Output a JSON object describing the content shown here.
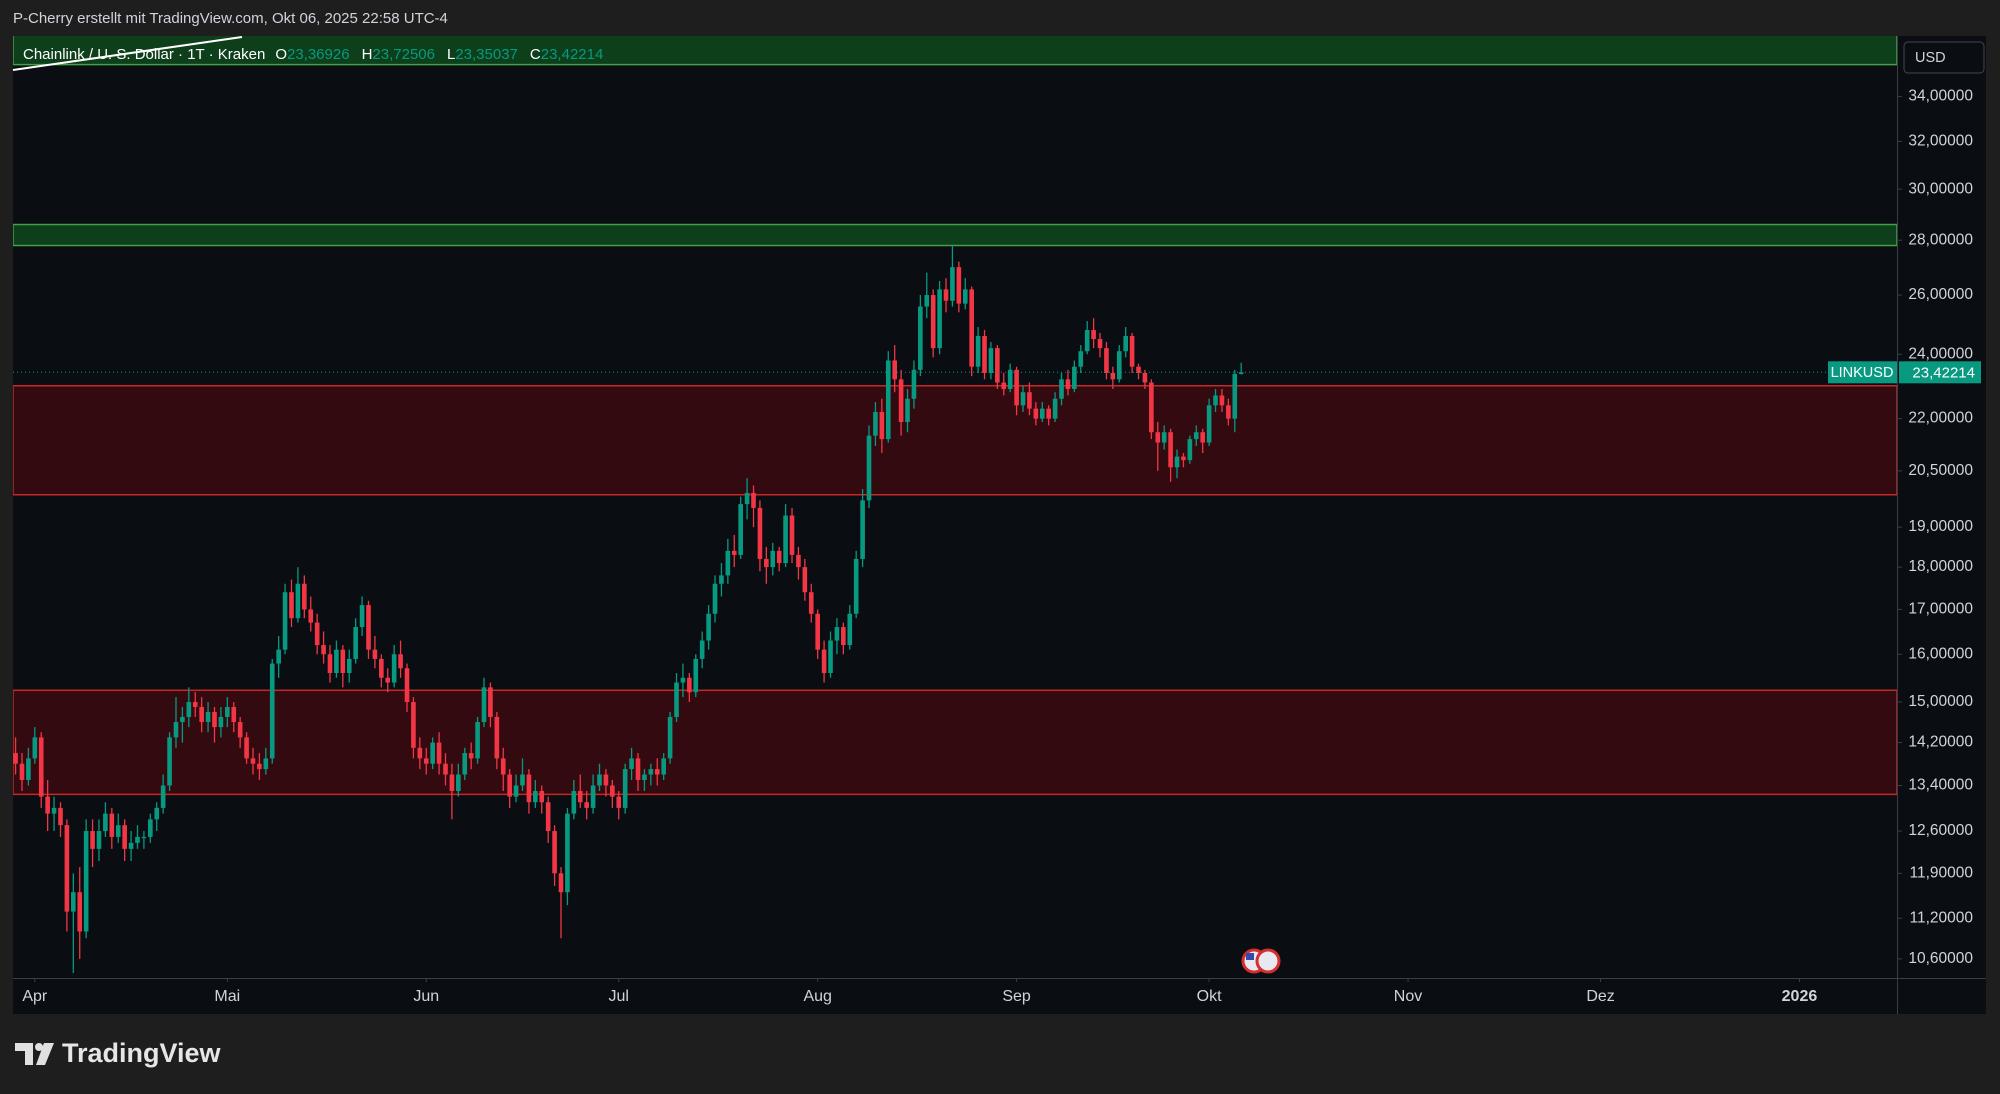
{
  "chart_data": {
    "type": "candlestick",
    "caption": "P-Cherry erstellt mit TradingView.com, Okt 06, 2025 22:58 UTC-4",
    "symbol": "Chainlink / U. S. Dollar · 1T · Kraken",
    "ohlc_legend": [
      {
        "key": "O",
        "value": "23,36926"
      },
      {
        "key": "H",
        "value": "23,72506"
      },
      {
        "key": "L",
        "value": "23,35037"
      },
      {
        "key": "C",
        "value": "23,42214"
      }
    ],
    "currency": "USD",
    "ticker": "LINKUSD",
    "last_price": {
      "value": 23.42214,
      "label": "23,42214"
    },
    "brand": "TradingView",
    "log_scale": true,
    "grid": false,
    "up_color": "#089981",
    "down_color": "#f23645",
    "ylim": [
      10.33,
      36.9
    ],
    "yticks": [
      {
        "value": 10.6,
        "label": "10,60000"
      },
      {
        "value": 11.2,
        "label": "11,20000"
      },
      {
        "value": 11.9,
        "label": "11,90000"
      },
      {
        "value": 12.6,
        "label": "12,60000"
      },
      {
        "value": 13.4,
        "label": "13,40000"
      },
      {
        "value": 14.2,
        "label": "14,20000"
      },
      {
        "value": 15,
        "label": "15,00000"
      },
      {
        "value": 16,
        "label": "16,00000"
      },
      {
        "value": 17,
        "label": "17,00000"
      },
      {
        "value": 18,
        "label": "18,00000"
      },
      {
        "value": 19,
        "label": "19,00000"
      },
      {
        "value": 20.5,
        "label": "20,50000"
      },
      {
        "value": 22,
        "label": "22,00000"
      },
      {
        "value": 24,
        "label": "24,00000"
      },
      {
        "value": 26,
        "label": "26,00000"
      },
      {
        "value": 28,
        "label": "28,00000"
      },
      {
        "value": 30,
        "label": "30,00000"
      },
      {
        "value": 32,
        "label": "32,00000"
      },
      {
        "value": 34,
        "label": "34,00000"
      }
    ],
    "xlim": [
      -0.4,
      293.2
    ],
    "xticks": [
      {
        "value": 3,
        "label": "Apr"
      },
      {
        "value": 33,
        "label": "Mai"
      },
      {
        "value": 64,
        "label": "Jun"
      },
      {
        "value": 94,
        "label": "Jul"
      },
      {
        "value": 125,
        "label": "Aug"
      },
      {
        "value": 156,
        "label": "Sep"
      },
      {
        "value": 186,
        "label": "Okt"
      },
      {
        "value": 217,
        "label": "Nov"
      },
      {
        "value": 247,
        "label": "Dez"
      },
      {
        "value": 278,
        "label": "2026"
      }
    ],
    "zones": [
      {
        "range": [
          35.5,
          37.5
        ],
        "fill": "#0d3f1b",
        "stroke": "#43a047"
      },
      {
        "range": [
          27.8,
          28.6
        ],
        "fill": "#0d3f1b",
        "stroke": "#43a047"
      },
      {
        "range": [
          19.85,
          23.0
        ],
        "fill": "#330a10",
        "stroke": "#c62828"
      },
      {
        "range": [
          13.24,
          15.24
        ],
        "fill": "#330a10",
        "stroke": "#c62828"
      }
    ],
    "open": [
      14.0,
      13.8,
      13.5,
      13.9,
      14.3,
      13.2,
      12.9,
      13.0,
      12.7,
      11.3,
      11.6,
      11.0,
      12.6,
      12.3,
      12.6,
      12.9,
      12.5,
      12.7,
      12.3,
      12.4,
      12.5,
      12.5,
      12.8,
      13.0,
      13.4,
      14.3,
      14.6,
      14.7,
      15.0,
      14.9,
      14.6,
      14.8,
      14.5,
      14.7,
      14.9,
      14.6,
      14.3,
      13.9,
      13.8,
      13.7,
      13.9,
      15.8,
      16.1,
      17.4,
      16.8,
      17.6,
      17.0,
      16.7,
      16.2,
      16.0,
      15.6,
      16.1,
      15.6,
      15.9,
      16.6,
      17.1,
      16.1,
      15.9,
      15.5,
      15.4,
      16.0,
      15.7,
      15.0,
      14.1,
      13.9,
      13.8,
      14.2,
      13.8,
      13.6,
      13.3,
      13.6,
      14.0,
      13.9,
      14.6,
      15.3,
      14.7,
      13.9,
      13.6,
      13.2,
      13.4,
      13.6,
      13.1,
      13.3,
      13.1,
      12.6,
      11.9,
      11.6,
      12.9,
      13.3,
      13.1,
      13.0,
      13.4,
      13.6,
      13.4,
      13.2,
      13.0,
      13.7,
      13.9,
      13.5,
      13.6,
      13.7,
      13.6,
      13.9,
      14.7,
      15.4,
      15.5,
      15.2,
      15.9,
      16.3,
      16.9,
      17.6,
      17.8,
      18.4,
      18.3,
      19.6,
      19.9,
      19.5,
      18.2,
      18.0,
      18.4,
      18.1,
      19.3,
      18.3,
      18.0,
      17.4,
      16.9,
      16.1,
      15.6,
      16.3,
      16.6,
      16.2,
      16.9,
      18.2,
      19.7,
      21.5,
      22.2,
      21.4,
      23.8,
      23.2,
      21.9,
      22.6,
      23.5,
      25.6,
      26.0,
      24.2,
      26.2,
      25.8,
      27.0,
      25.7,
      26.2,
      23.6,
      24.6,
      23.4,
      24.2,
      23.1,
      22.9,
      23.5,
      22.4,
      22.8,
      22.3,
      22.0,
      22.3,
      22.0,
      22.6,
      23.2,
      22.9,
      23.6,
      24.1,
      24.8,
      24.5,
      24.2,
      23.4,
      23.2,
      24.1,
      24.6,
      23.6,
      23.4,
      23.1,
      21.6,
      21.3,
      21.6,
      20.6,
      20.9,
      20.8,
      21.4,
      21.6,
      21.3,
      22.4,
      22.7,
      22.4,
      22.0,
      23.36926
    ],
    "high": [
      14.3,
      14.0,
      14.1,
      14.5,
      14.4,
      13.5,
      13.2,
      13.1,
      12.8,
      11.9,
      12.0,
      12.8,
      12.8,
      12.8,
      13.1,
      13.0,
      12.9,
      12.8,
      12.6,
      12.7,
      12.6,
      12.9,
      13.1,
      13.6,
      14.4,
      15.1,
      14.9,
      15.3,
      15.2,
      15.1,
      15.0,
      14.9,
      14.9,
      15.1,
      15.0,
      14.7,
      14.4,
      14.1,
      14.0,
      14.1,
      15.9,
      16.4,
      17.6,
      17.7,
      18.0,
      17.8,
      17.3,
      16.9,
      16.5,
      16.2,
      16.3,
      16.2,
      16.1,
      16.8,
      17.3,
      17.2,
      16.4,
      16.0,
      15.7,
      16.2,
      16.3,
      15.8,
      15.1,
      14.3,
      14.1,
      14.3,
      14.4,
      14.0,
      13.8,
      13.8,
      14.1,
      14.2,
      14.7,
      15.5,
      15.4,
      14.8,
      14.1,
      13.7,
      13.6,
      13.9,
      13.7,
      13.5,
      13.4,
      13.2,
      12.7,
      12.0,
      13.0,
      13.5,
      13.6,
      13.3,
      13.6,
      13.8,
      13.7,
      13.5,
      13.3,
      13.8,
      14.1,
      14.0,
      13.7,
      13.8,
      13.9,
      14.0,
      14.8,
      15.6,
      15.8,
      15.6,
      16.0,
      16.5,
      17.1,
      17.8,
      18.1,
      18.7,
      18.8,
      19.8,
      20.3,
      20.1,
      19.7,
      18.5,
      18.6,
      18.5,
      19.6,
      19.5,
      18.5,
      18.2,
      17.6,
      17.0,
      16.3,
      16.5,
      16.8,
      16.7,
      17.1,
      18.4,
      20.0,
      21.8,
      22.5,
      22.6,
      24.1,
      24.3,
      23.5,
      22.9,
      23.8,
      26.0,
      26.8,
      26.2,
      26.5,
      26.6,
      27.8,
      27.2,
      26.6,
      26.3,
      24.9,
      24.8,
      24.4,
      24.3,
      23.4,
      23.7,
      23.6,
      23.0,
      23.1,
      22.5,
      22.5,
      22.4,
      22.8,
      23.4,
      23.5,
      23.8,
      24.3,
      25.1,
      25.2,
      24.7,
      24.4,
      23.6,
      24.3,
      24.9,
      24.7,
      23.7,
      23.5,
      23.2,
      21.9,
      21.8,
      21.7,
      21.1,
      21.0,
      21.5,
      21.8,
      21.7,
      22.6,
      22.9,
      22.9,
      22.6,
      23.5,
      23.72506
    ],
    "low": [
      13.6,
      13.3,
      13.4,
      13.8,
      13.0,
      12.6,
      12.6,
      12.5,
      11.0,
      10.4,
      10.6,
      10.9,
      12.0,
      12.1,
      12.5,
      12.3,
      12.4,
      12.1,
      12.1,
      12.3,
      12.3,
      12.4,
      12.6,
      12.9,
      13.3,
      14.1,
      14.2,
      14.5,
      14.7,
      14.4,
      14.4,
      14.2,
      14.3,
      14.5,
      14.4,
      14.1,
      13.8,
      13.6,
      13.5,
      13.6,
      13.8,
      15.5,
      16.0,
      16.6,
      16.7,
      16.8,
      16.5,
      16.0,
      15.8,
      15.4,
      15.5,
      15.3,
      15.4,
      15.8,
      16.4,
      15.9,
      15.7,
      15.3,
      15.2,
      15.3,
      15.5,
      14.8,
      13.9,
      13.7,
      13.6,
      13.7,
      13.6,
      13.4,
      12.8,
      13.2,
      13.5,
      13.7,
      13.8,
      14.5,
      14.5,
      13.7,
      13.3,
      13.0,
      13.1,
      13.3,
      12.9,
      13.0,
      12.9,
      12.4,
      11.7,
      10.9,
      11.4,
      12.8,
      13.0,
      12.8,
      12.9,
      13.3,
      13.2,
      13.0,
      12.8,
      12.9,
      13.5,
      13.3,
      13.3,
      13.4,
      13.4,
      13.5,
      13.8,
      14.6,
      15.1,
      15.0,
      15.1,
      15.7,
      16.1,
      16.7,
      17.3,
      17.6,
      18.0,
      18.2,
      19.2,
      19.0,
      17.9,
      17.6,
      17.8,
      17.9,
      18.0,
      18.1,
      17.7,
      17.2,
      16.7,
      15.9,
      15.4,
      15.5,
      16.0,
      16.0,
      16.1,
      16.8,
      18.0,
      19.5,
      21.2,
      21.0,
      21.3,
      22.8,
      21.5,
      21.6,
      22.3,
      23.3,
      25.2,
      23.9,
      24.0,
      25.4,
      25.6,
      25.4,
      25.5,
      23.3,
      23.4,
      23.2,
      23.2,
      22.9,
      22.7,
      22.8,
      22.1,
      22.2,
      22.1,
      21.8,
      21.9,
      21.8,
      21.9,
      22.4,
      22.7,
      22.8,
      23.4,
      24.0,
      24.2,
      23.9,
      23.2,
      22.9,
      23.1,
      23.9,
      23.4,
      23.2,
      22.9,
      21.4,
      20.5,
      21.1,
      20.2,
      20.3,
      20.6,
      20.7,
      21.2,
      21.0,
      21.2,
      22.2,
      22.2,
      21.8,
      21.6,
      23.35037
    ],
    "close": [
      13.8,
      13.5,
      13.9,
      14.3,
      13.2,
      12.9,
      13.0,
      12.7,
      11.3,
      11.6,
      11.0,
      12.6,
      12.3,
      12.6,
      12.9,
      12.5,
      12.7,
      12.3,
      12.4,
      12.5,
      12.5,
      12.8,
      13.0,
      13.4,
      14.3,
      14.6,
      14.7,
      15.0,
      14.9,
      14.6,
      14.8,
      14.5,
      14.7,
      14.9,
      14.6,
      14.3,
      13.9,
      13.8,
      13.7,
      13.9,
      15.8,
      16.1,
      17.4,
      16.8,
      17.6,
      17.0,
      16.7,
      16.2,
      16.0,
      15.6,
      16.1,
      15.6,
      15.9,
      16.6,
      17.1,
      16.1,
      15.9,
      15.5,
      15.4,
      16.0,
      15.7,
      15.0,
      14.1,
      13.9,
      13.8,
      14.2,
      13.8,
      13.6,
      13.3,
      13.6,
      14.0,
      13.9,
      14.6,
      15.3,
      14.7,
      13.9,
      13.6,
      13.2,
      13.4,
      13.6,
      13.1,
      13.3,
      13.1,
      12.6,
      11.9,
      11.6,
      12.9,
      13.3,
      13.1,
      13.0,
      13.4,
      13.6,
      13.4,
      13.2,
      13.0,
      13.7,
      13.9,
      13.5,
      13.6,
      13.7,
      13.6,
      13.9,
      14.7,
      15.4,
      15.5,
      15.2,
      15.9,
      16.3,
      16.9,
      17.6,
      17.8,
      18.4,
      18.3,
      19.6,
      19.9,
      19.5,
      18.2,
      18.0,
      18.4,
      18.1,
      19.3,
      18.3,
      18.0,
      17.4,
      16.9,
      16.1,
      15.6,
      16.3,
      16.6,
      16.2,
      16.9,
      18.2,
      19.7,
      21.5,
      22.2,
      21.4,
      23.8,
      23.2,
      21.9,
      22.6,
      23.5,
      25.6,
      26.0,
      24.2,
      26.2,
      25.8,
      27.0,
      25.7,
      26.2,
      23.6,
      24.6,
      23.4,
      24.2,
      23.1,
      22.9,
      23.5,
      22.4,
      22.8,
      22.3,
      22.0,
      22.3,
      22.0,
      22.6,
      23.2,
      22.9,
      23.6,
      24.1,
      24.8,
      24.5,
      24.2,
      23.4,
      23.2,
      24.1,
      24.6,
      23.6,
      23.4,
      23.1,
      21.6,
      21.3,
      21.6,
      20.6,
      20.9,
      20.8,
      21.4,
      21.6,
      21.3,
      22.4,
      22.7,
      22.4,
      22.0,
      23.36926,
      23.42214
    ]
  }
}
